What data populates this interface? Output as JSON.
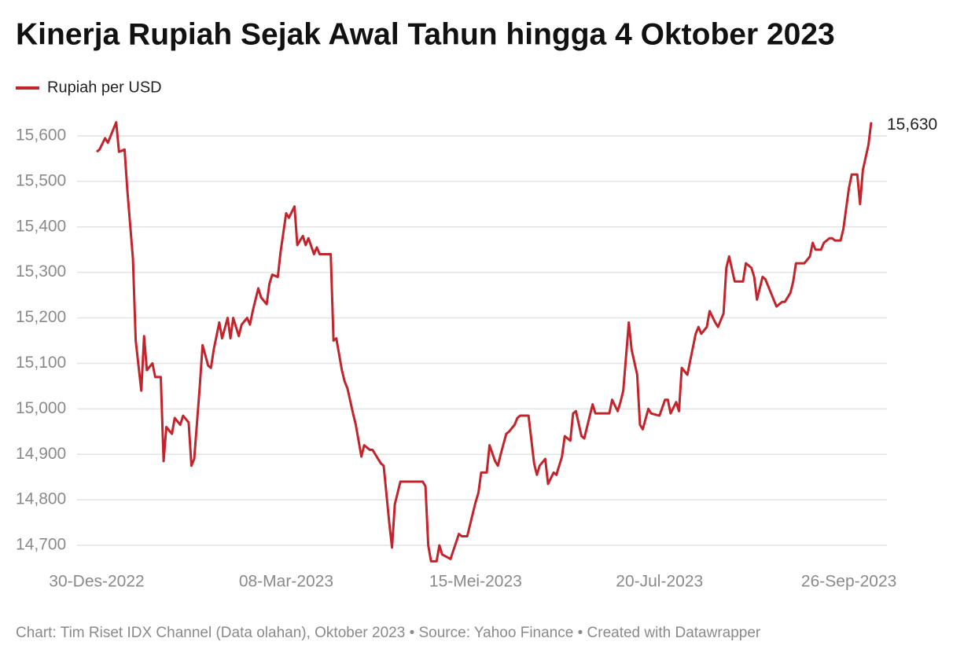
{
  "chart_data": {
    "type": "line",
    "title": "Kinerja Rupiah Sejak Awal Tahun hingga 4 Oktober 2023",
    "footer": "Chart: Tim Riset IDX Channel (Data olahan), Oktober 2023 • Source: Yahoo Finance • Created with Datawrapper",
    "x": [
      "2022-12-30",
      "2022-12-31",
      "2023-01-02",
      "2023-01-03",
      "2023-01-06",
      "2023-01-07",
      "2023-01-09",
      "2023-01-10",
      "2023-01-12",
      "2023-01-13",
      "2023-01-15",
      "2023-01-16",
      "2023-01-17",
      "2023-01-19",
      "2023-01-20",
      "2023-01-22",
      "2023-01-23",
      "2023-01-24",
      "2023-01-26",
      "2023-01-27",
      "2023-01-29",
      "2023-01-30",
      "2023-02-01",
      "2023-02-02",
      "2023-02-03",
      "2023-02-05",
      "2023-02-06",
      "2023-02-08",
      "2023-02-09",
      "2023-02-10",
      "2023-02-12",
      "2023-02-13",
      "2023-02-15",
      "2023-02-16",
      "2023-02-17",
      "2023-02-19",
      "2023-02-20",
      "2023-02-22",
      "2023-02-23",
      "2023-02-24",
      "2023-02-26",
      "2023-02-27",
      "2023-03-01",
      "2023-03-02",
      "2023-03-03",
      "2023-03-05",
      "2023-03-06",
      "2023-03-08",
      "2023-03-09",
      "2023-03-11",
      "2023-03-12",
      "2023-03-14",
      "2023-03-15",
      "2023-03-16",
      "2023-03-18",
      "2023-03-19",
      "2023-03-20",
      "2023-03-24",
      "2023-03-25",
      "2023-03-26",
      "2023-03-28",
      "2023-03-29",
      "2023-03-30",
      "2023-04-01",
      "2023-04-02",
      "2023-04-04",
      "2023-04-05",
      "2023-04-07",
      "2023-04-08",
      "2023-04-09",
      "2023-04-11",
      "2023-04-12",
      "2023-04-14",
      "2023-04-15",
      "2023-04-16",
      "2023-04-18",
      "2023-04-26",
      "2023-04-27",
      "2023-04-28",
      "2023-04-29",
      "2023-05-01",
      "2023-05-02",
      "2023-05-03",
      "2023-05-06",
      "2023-05-09",
      "2023-05-10",
      "2023-05-12",
      "2023-05-13",
      "2023-05-15",
      "2023-05-16",
      "2023-05-17",
      "2023-05-19",
      "2023-05-20",
      "2023-05-22",
      "2023-05-23",
      "2023-05-24",
      "2023-05-26",
      "2023-05-27",
      "2023-05-29",
      "2023-05-30",
      "2023-05-31",
      "2023-06-03",
      "2023-06-05",
      "2023-06-06",
      "2023-06-07",
      "2023-06-09",
      "2023-06-10",
      "2023-06-12",
      "2023-06-13",
      "2023-06-15",
      "2023-06-16",
      "2023-06-18",
      "2023-06-19",
      "2023-06-20",
      "2023-06-22",
      "2023-06-23",
      "2023-06-25",
      "2023-06-26",
      "2023-06-27",
      "2023-07-02",
      "2023-07-03",
      "2023-07-05",
      "2023-07-06",
      "2023-07-07",
      "2023-07-09",
      "2023-07-10",
      "2023-07-12",
      "2023-07-13",
      "2023-07-14",
      "2023-07-16",
      "2023-07-17",
      "2023-07-20",
      "2023-07-22",
      "2023-07-23",
      "2023-07-24",
      "2023-07-26",
      "2023-07-27",
      "2023-07-28",
      "2023-07-30",
      "2023-07-31",
      "2023-08-02",
      "2023-08-03",
      "2023-08-04",
      "2023-08-06",
      "2023-08-07",
      "2023-08-09",
      "2023-08-10",
      "2023-08-12",
      "2023-08-13",
      "2023-08-14",
      "2023-08-16",
      "2023-08-19",
      "2023-08-20",
      "2023-08-22",
      "2023-08-23",
      "2023-08-24",
      "2023-08-26",
      "2023-08-27",
      "2023-08-29",
      "2023-08-30",
      "2023-08-31",
      "2023-09-02",
      "2023-09-03",
      "2023-09-05",
      "2023-09-06",
      "2023-09-07",
      "2023-09-10",
      "2023-09-12",
      "2023-09-13",
      "2023-09-14",
      "2023-09-16",
      "2023-09-17",
      "2023-09-19",
      "2023-09-20",
      "2023-09-21",
      "2023-09-23",
      "2023-09-24",
      "2023-09-26",
      "2023-09-27",
      "2023-09-29",
      "2023-09-30",
      "2023-10-01",
      "2023-10-03",
      "2023-10-04"
    ],
    "series": [
      {
        "name": "Rupiah per USD",
        "color": "#c3232b",
        "values": [
          15565,
          15570,
          15595,
          15585,
          15630,
          15565,
          15570,
          15480,
          15330,
          15150,
          15040,
          15160,
          15085,
          15100,
          15070,
          15070,
          14885,
          14960,
          14945,
          14980,
          14965,
          14985,
          14970,
          14875,
          14890,
          15050,
          15140,
          15095,
          15090,
          15130,
          15190,
          15155,
          15200,
          15155,
          15200,
          15160,
          15185,
          15200,
          15185,
          15215,
          15265,
          15245,
          15230,
          15275,
          15295,
          15290,
          15345,
          15430,
          15420,
          15445,
          15360,
          15380,
          15360,
          15375,
          15340,
          15355,
          15340,
          15340,
          15150,
          15155,
          15085,
          15060,
          15045,
          14990,
          14965,
          14895,
          14920,
          14910,
          14910,
          14900,
          14880,
          14875,
          14750,
          14695,
          14790,
          14840,
          14840,
          14830,
          14700,
          14665,
          14665,
          14700,
          14680,
          14670,
          14725,
          14720,
          14720,
          14745,
          14795,
          14815,
          14860,
          14860,
          14920,
          14885,
          14875,
          14900,
          14945,
          14950,
          14965,
          14980,
          14985,
          14985,
          14880,
          14855,
          14875,
          14890,
          14835,
          14860,
          14855,
          14895,
          14940,
          14930,
          14990,
          14995,
          14940,
          14935,
          14985,
          15010,
          14990,
          14990,
          15020,
          14995,
          15015,
          15040,
          15190,
          15130,
          15075,
          14965,
          14955,
          15000,
          14990,
          14985,
          15020,
          15020,
          14990,
          15015,
          14995,
          15090,
          15075,
          15105,
          15165,
          15180,
          15165,
          15180,
          15215,
          15190,
          15180,
          15210,
          15310,
          15335,
          15280,
          15280,
          15320,
          15310,
          15290,
          15240,
          15290,
          15285,
          15255,
          15240,
          15225,
          15235,
          15235,
          15255,
          15280,
          15320,
          15320,
          15335,
          15365,
          15350,
          15350,
          15365,
          15375,
          15375,
          15370,
          15370,
          15395,
          15485,
          15515,
          15515,
          15450,
          15525,
          15580,
          15630
        ],
        "value_labels": [
          null,
          null,
          null,
          null,
          null,
          null,
          null,
          null,
          null,
          null,
          null,
          null,
          null,
          null,
          null,
          null,
          null,
          null,
          null,
          null,
          null,
          null,
          null,
          null,
          null,
          null,
          null,
          null,
          null,
          null,
          null,
          null,
          null,
          null,
          null,
          null,
          null,
          null,
          null,
          null,
          null,
          null,
          null,
          null,
          null,
          null,
          null,
          null,
          null,
          null,
          null,
          null,
          null,
          null,
          null,
          null,
          null,
          null,
          null,
          null,
          null,
          null,
          null,
          null,
          null,
          null,
          null,
          null,
          null,
          null,
          null,
          null,
          null,
          null,
          null,
          null,
          null,
          null,
          null,
          null,
          null,
          null,
          null,
          null,
          null,
          null,
          null,
          null,
          null,
          null,
          null,
          null,
          null,
          null,
          null,
          null,
          null,
          null,
          null,
          null,
          null,
          null,
          null,
          null,
          null,
          null,
          null,
          null,
          null,
          null,
          null,
          null,
          null,
          null,
          null,
          null,
          null,
          null,
          null,
          null,
          null,
          null,
          null,
          null,
          null,
          null,
          null,
          null,
          null,
          null,
          null,
          null,
          null,
          null,
          null,
          null,
          null,
          null,
          null,
          null,
          null,
          null,
          null,
          null,
          null,
          null,
          null,
          null,
          null,
          null,
          null,
          null,
          null,
          null,
          null,
          null,
          null,
          null,
          null,
          null,
          null,
          null,
          null,
          null,
          null,
          null,
          null,
          null,
          null,
          null,
          null,
          null,
          null,
          null,
          null,
          null,
          null,
          null,
          null,
          null,
          null,
          null,
          null,
          "15,630"
        ]
      }
    ],
    "xlim": [
      "2022-12-30",
      "2023-10-04"
    ],
    "xticks": [
      {
        "value": "2022-12-30",
        "label": "30-Des-2022"
      },
      {
        "value": "2023-03-08",
        "label": "08-Mar-2023"
      },
      {
        "value": "2023-05-15",
        "label": "15-Mei-2023"
      },
      {
        "value": "2023-07-20",
        "label": "20-Jul-2023"
      },
      {
        "value": "2023-09-26",
        "label": "26-Sep-2023"
      }
    ],
    "ylim": [
      14650,
      15650
    ],
    "yticks": [
      {
        "value": 14700,
        "label": "14,700"
      },
      {
        "value": 14800,
        "label": "14,800"
      },
      {
        "value": 14900,
        "label": "14,900"
      },
      {
        "value": 15000,
        "label": "15,000"
      },
      {
        "value": 15100,
        "label": "15,100"
      },
      {
        "value": 15200,
        "label": "15,200"
      },
      {
        "value": 15300,
        "label": "15,300"
      },
      {
        "value": 15400,
        "label": "15,400"
      },
      {
        "value": 15500,
        "label": "15,500"
      },
      {
        "value": 15600,
        "label": "15,600"
      }
    ],
    "grid": true
  }
}
